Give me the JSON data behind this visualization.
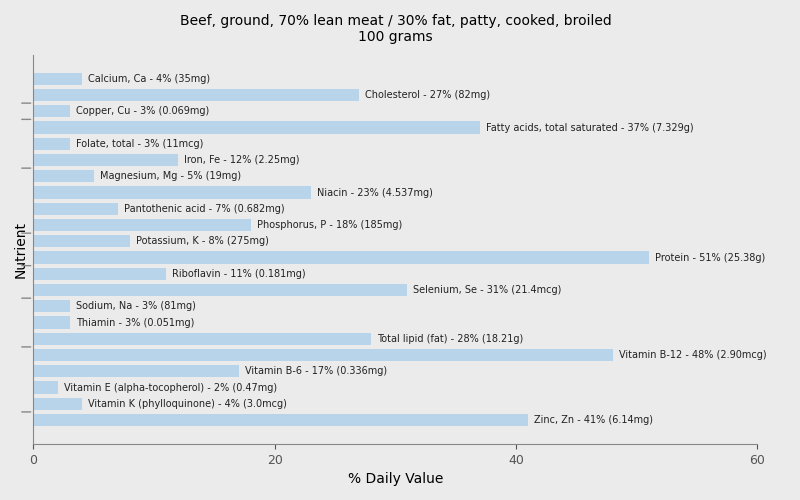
{
  "title": "Beef, ground, 70% lean meat / 30% fat, patty, cooked, broiled\n100 grams",
  "xlabel": "% Daily Value",
  "ylabel": "Nutrient",
  "bar_color": "#b8d4ea",
  "background_color": "#ebebeb",
  "xlim": [
    0,
    60
  ],
  "xticks": [
    0,
    20,
    40,
    60
  ],
  "nutrients": [
    {
      "label": "Calcium, Ca - 4% (35mg)",
      "value": 4
    },
    {
      "label": "Cholesterol - 27% (82mg)",
      "value": 27
    },
    {
      "label": "Copper, Cu - 3% (0.069mg)",
      "value": 3
    },
    {
      "label": "Fatty acids, total saturated - 37% (7.329g)",
      "value": 37
    },
    {
      "label": "Folate, total - 3% (11mcg)",
      "value": 3
    },
    {
      "label": "Iron, Fe - 12% (2.25mg)",
      "value": 12
    },
    {
      "label": "Magnesium, Mg - 5% (19mg)",
      "value": 5
    },
    {
      "label": "Niacin - 23% (4.537mg)",
      "value": 23
    },
    {
      "label": "Pantothenic acid - 7% (0.682mg)",
      "value": 7
    },
    {
      "label": "Phosphorus, P - 18% (185mg)",
      "value": 18
    },
    {
      "label": "Potassium, K - 8% (275mg)",
      "value": 8
    },
    {
      "label": "Protein - 51% (25.38g)",
      "value": 51
    },
    {
      "label": "Riboflavin - 11% (0.181mg)",
      "value": 11
    },
    {
      "label": "Selenium, Se - 31% (21.4mcg)",
      "value": 31
    },
    {
      "label": "Sodium, Na - 3% (81mg)",
      "value": 3
    },
    {
      "label": "Thiamin - 3% (0.051mg)",
      "value": 3
    },
    {
      "label": "Total lipid (fat) - 28% (18.21g)",
      "value": 28
    },
    {
      "label": "Vitamin B-12 - 48% (2.90mcg)",
      "value": 48
    },
    {
      "label": "Vitamin B-6 - 17% (0.336mg)",
      "value": 17
    },
    {
      "label": "Vitamin E (alpha-tocopherol) - 2% (0.47mg)",
      "value": 2
    },
    {
      "label": "Vitamin K (phylloquinone) - 4% (3.0mcg)",
      "value": 4
    },
    {
      "label": "Zinc, Zn - 41% (6.14mg)",
      "value": 41
    }
  ],
  "label_fontsize": 7,
  "bar_height": 0.75,
  "tick_label_fontsize": 9,
  "axis_label_fontsize": 10,
  "title_fontsize": 10
}
